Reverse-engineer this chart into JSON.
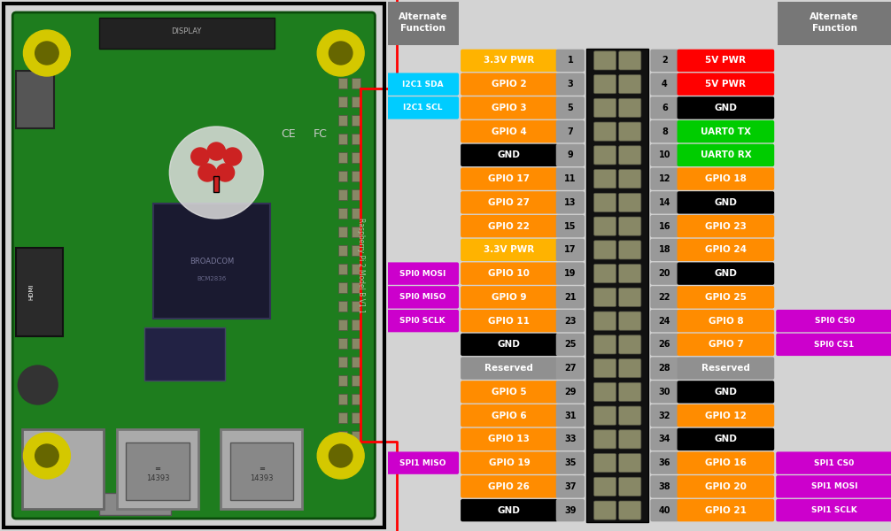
{
  "fig_width": 10.06,
  "fig_height": 6.0,
  "bg_color": "#d3d3d3",
  "left_pins": [
    {
      "num": 1,
      "label": "3.3V PWR",
      "color": "#FFB300",
      "alt": null,
      "alt_color": null
    },
    {
      "num": 3,
      "label": "GPIO 2",
      "color": "#FF8C00",
      "alt": "I2C1 SDA",
      "alt_color": "#00CCFF"
    },
    {
      "num": 5,
      "label": "GPIO 3",
      "color": "#FF8C00",
      "alt": "I2C1 SCL",
      "alt_color": "#00CCFF"
    },
    {
      "num": 7,
      "label": "GPIO 4",
      "color": "#FF8C00",
      "alt": null,
      "alt_color": null
    },
    {
      "num": 9,
      "label": "GND",
      "color": "#000000",
      "alt": null,
      "alt_color": null
    },
    {
      "num": 11,
      "label": "GPIO 17",
      "color": "#FF8C00",
      "alt": null,
      "alt_color": null
    },
    {
      "num": 13,
      "label": "GPIO 27",
      "color": "#FF8C00",
      "alt": null,
      "alt_color": null
    },
    {
      "num": 15,
      "label": "GPIO 22",
      "color": "#FF8C00",
      "alt": null,
      "alt_color": null
    },
    {
      "num": 17,
      "label": "3.3V PWR",
      "color": "#FFB300",
      "alt": null,
      "alt_color": null
    },
    {
      "num": 19,
      "label": "GPIO 10",
      "color": "#FF8C00",
      "alt": "SPI0 MOSI",
      "alt_color": "#CC00CC"
    },
    {
      "num": 21,
      "label": "GPIO 9",
      "color": "#FF8C00",
      "alt": "SPI0 MISO",
      "alt_color": "#CC00CC"
    },
    {
      "num": 23,
      "label": "GPIO 11",
      "color": "#FF8C00",
      "alt": "SPI0 SCLK",
      "alt_color": "#CC00CC"
    },
    {
      "num": 25,
      "label": "GND",
      "color": "#000000",
      "alt": null,
      "alt_color": null
    },
    {
      "num": 27,
      "label": "Reserved",
      "color": "#909090",
      "alt": null,
      "alt_color": null
    },
    {
      "num": 29,
      "label": "GPIO 5",
      "color": "#FF8C00",
      "alt": null,
      "alt_color": null
    },
    {
      "num": 31,
      "label": "GPIO 6",
      "color": "#FF8C00",
      "alt": null,
      "alt_color": null
    },
    {
      "num": 33,
      "label": "GPIO 13",
      "color": "#FF8C00",
      "alt": null,
      "alt_color": null
    },
    {
      "num": 35,
      "label": "GPIO 19",
      "color": "#FF8C00",
      "alt": "SPI1 MISO",
      "alt_color": "#CC00CC"
    },
    {
      "num": 37,
      "label": "GPIO 26",
      "color": "#FF8C00",
      "alt": null,
      "alt_color": null
    },
    {
      "num": 39,
      "label": "GND",
      "color": "#000000",
      "alt": null,
      "alt_color": null
    }
  ],
  "right_pins": [
    {
      "num": 2,
      "label": "5V PWR",
      "color": "#FF0000",
      "alt": null,
      "alt_color": null
    },
    {
      "num": 4,
      "label": "5V PWR",
      "color": "#FF0000",
      "alt": null,
      "alt_color": null
    },
    {
      "num": 6,
      "label": "GND",
      "color": "#000000",
      "alt": null,
      "alt_color": null
    },
    {
      "num": 8,
      "label": "UART0 TX",
      "color": "#00CC00",
      "alt": null,
      "alt_color": null
    },
    {
      "num": 10,
      "label": "UART0 RX",
      "color": "#00CC00",
      "alt": null,
      "alt_color": null
    },
    {
      "num": 12,
      "label": "GPIO 18",
      "color": "#FF8C00",
      "alt": null,
      "alt_color": null
    },
    {
      "num": 14,
      "label": "GND",
      "color": "#000000",
      "alt": null,
      "alt_color": null
    },
    {
      "num": 16,
      "label": "GPIO 23",
      "color": "#FF8C00",
      "alt": null,
      "alt_color": null
    },
    {
      "num": 18,
      "label": "GPIO 24",
      "color": "#FF8C00",
      "alt": null,
      "alt_color": null
    },
    {
      "num": 20,
      "label": "GND",
      "color": "#000000",
      "alt": null,
      "alt_color": null
    },
    {
      "num": 22,
      "label": "GPIO 25",
      "color": "#FF8C00",
      "alt": null,
      "alt_color": null
    },
    {
      "num": 24,
      "label": "GPIO 8",
      "color": "#FF8C00",
      "alt": "SPI0 CS0",
      "alt_color": "#CC00CC"
    },
    {
      "num": 26,
      "label": "GPIO 7",
      "color": "#FF8C00",
      "alt": "SPI0 CS1",
      "alt_color": "#CC00CC"
    },
    {
      "num": 28,
      "label": "Reserved",
      "color": "#909090",
      "alt": null,
      "alt_color": null
    },
    {
      "num": 30,
      "label": "GND",
      "color": "#000000",
      "alt": null,
      "alt_color": null
    },
    {
      "num": 32,
      "label": "GPIO 12",
      "color": "#FF8C00",
      "alt": null,
      "alt_color": null
    },
    {
      "num": 34,
      "label": "GND",
      "color": "#000000",
      "alt": null,
      "alt_color": null
    },
    {
      "num": 36,
      "label": "GPIO 16",
      "color": "#FF8C00",
      "alt": "SPI1 CS0",
      "alt_color": "#CC00CC"
    },
    {
      "num": 38,
      "label": "GPIO 20",
      "color": "#FF8C00",
      "alt": "SPI1 MOSI",
      "alt_color": "#CC00CC"
    },
    {
      "num": 40,
      "label": "GPIO 21",
      "color": "#FF8C00",
      "alt": "SPI1 SCLK",
      "alt_color": "#CC00CC"
    }
  ],
  "photo_bg": "#888888",
  "board_color": "#1a6b1a",
  "connector_color": "#111111",
  "pin_metal_color": "#888866",
  "num_box_color": "#999999",
  "alt_header_color": "#777777"
}
